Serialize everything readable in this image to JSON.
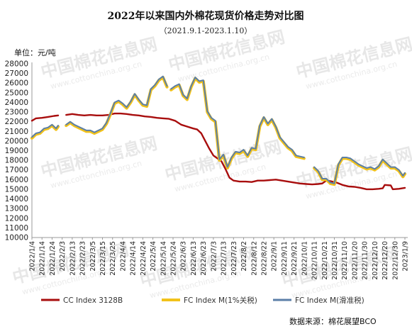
{
  "chart_data": {
    "type": "line",
    "title": "2022年以来国内外棉花现货价格走势对比图",
    "subtitle": "（2021.9.1-2023.1.10）",
    "unit_label": "单位：元/吨",
    "source": "数据来源：棉花展望BCO",
    "watermark": {
      "brand": "中国棉花信息网",
      "site": "www.cottonchina.org.cn"
    },
    "ylim": [
      10000,
      28000
    ],
    "ytick_step": 1000,
    "grid": false,
    "legend_position": "bottom",
    "x_labels": [
      "2022/1/4",
      "2022/1/14",
      "2022/1/24",
      "2022/2/3",
      "2022/2/13",
      "2022/2/23",
      "2022/3/5",
      "2022/3/15",
      "2022/3/25",
      "2022/4/4",
      "2022/4/14",
      "2022/4/24",
      "2022/5/4",
      "2022/5/14",
      "2022/5/24",
      "2022/6/3",
      "2022/6/13",
      "2022/6/23",
      "2022/7/3",
      "2022/7/13",
      "2022/7/23",
      "2022/8/2",
      "2022/8/12",
      "2022/8/22",
      "2022/9/1",
      "2022/9/11",
      "2022/9/21",
      "2022/10/1",
      "2022/10/11",
      "2022/10/21",
      "2022/10/31",
      "2022/11/10",
      "2022/11/20",
      "2022/11/30",
      "2022/12/10",
      "2022/12/20",
      "2022/12/30",
      "2023/1/9"
    ],
    "series": [
      {
        "name": "CC Index 3128B",
        "color": "#a80d0d",
        "points": [
          [
            "2022/1/4",
            22100
          ],
          [
            "2022/1/8",
            22350
          ],
          [
            "2022/1/14",
            22400
          ],
          [
            "2022/1/20",
            22500
          ],
          [
            "2022/1/26",
            22600
          ],
          [
            "2022/1/30",
            22650
          ],
          null,
          [
            "2022/2/7",
            22700
          ],
          [
            "2022/2/13",
            22800
          ],
          [
            "2022/2/19",
            22700
          ],
          [
            "2022/2/25",
            22650
          ],
          [
            "2022/3/3",
            22700
          ],
          [
            "2022/3/9",
            22650
          ],
          [
            "2022/3/15",
            22650
          ],
          [
            "2022/3/21",
            22700
          ],
          [
            "2022/3/27",
            22850
          ],
          [
            "2022/4/2",
            22850
          ],
          [
            "2022/4/8",
            22800
          ],
          [
            "2022/4/14",
            22700
          ],
          [
            "2022/4/20",
            22650
          ],
          [
            "2022/4/26",
            22550
          ],
          [
            "2022/5/2",
            22500
          ],
          [
            "2022/5/8",
            22400
          ],
          [
            "2022/5/14",
            22350
          ],
          [
            "2022/5/20",
            22300
          ],
          [
            "2022/5/26",
            22100
          ],
          [
            "2022/6/1",
            21700
          ],
          [
            "2022/6/7",
            21500
          ],
          [
            "2022/6/13",
            21300
          ],
          [
            "2022/6/17",
            21200
          ],
          [
            "2022/6/21",
            20800
          ],
          [
            "2022/6/25",
            20000
          ],
          [
            "2022/6/29",
            19200
          ],
          [
            "2022/7/3",
            18500
          ],
          [
            "2022/7/7",
            18200
          ],
          [
            "2022/7/11",
            17900
          ],
          [
            "2022/7/15",
            17100
          ],
          [
            "2022/7/19",
            16200
          ],
          [
            "2022/7/23",
            15900
          ],
          [
            "2022/7/29",
            15800
          ],
          [
            "2022/8/4",
            15800
          ],
          [
            "2022/8/10",
            15750
          ],
          [
            "2022/8/16",
            15900
          ],
          [
            "2022/8/22",
            15900
          ],
          [
            "2022/8/28",
            15950
          ],
          [
            "2022/9/3",
            16000
          ],
          [
            "2022/9/9",
            15900
          ],
          [
            "2022/9/15",
            15800
          ],
          [
            "2022/9/21",
            15700
          ],
          [
            "2022/9/27",
            15600
          ],
          [
            "2022/10/3",
            15550
          ],
          [
            "2022/10/9",
            15500
          ],
          [
            "2022/10/15",
            15550
          ],
          [
            "2022/10/19",
            15600
          ],
          [
            "2022/10/23",
            15900
          ],
          [
            "2022/10/27",
            15850
          ],
          [
            "2022/11/2",
            15700
          ],
          [
            "2022/11/8",
            15450
          ],
          [
            "2022/11/14",
            15300
          ],
          [
            "2022/11/20",
            15250
          ],
          [
            "2022/11/26",
            15150
          ],
          [
            "2022/12/2",
            15000
          ],
          [
            "2022/12/8",
            15000
          ],
          [
            "2022/12/14",
            15050
          ],
          [
            "2022/12/18",
            15100
          ],
          [
            "2022/12/20",
            15450
          ],
          [
            "2022/12/26",
            15400
          ],
          [
            "2022/12/28",
            15000
          ],
          [
            "2023/1/3",
            15050
          ],
          [
            "2023/1/9",
            15150
          ]
        ]
      },
      {
        "name": "FC Index M(1%关税)",
        "color": "#f2c21a",
        "points": [
          [
            "2022/1/4",
            20300
          ],
          [
            "2022/1/8",
            20700
          ],
          [
            "2022/1/12",
            20800
          ],
          [
            "2022/1/16",
            21200
          ],
          [
            "2022/1/20",
            21300
          ],
          [
            "2022/1/24",
            21600
          ],
          [
            "2022/1/28",
            21200
          ],
          [
            "2022/1/30",
            21500
          ],
          null,
          [
            "2022/2/7",
            21600
          ],
          [
            "2022/2/11",
            21900
          ],
          [
            "2022/2/15",
            21600
          ],
          [
            "2022/2/19",
            21400
          ],
          [
            "2022/2/23",
            21200
          ],
          [
            "2022/2/27",
            21000
          ],
          [
            "2022/3/3",
            21000
          ],
          [
            "2022/3/7",
            20800
          ],
          [
            "2022/3/11",
            21000
          ],
          [
            "2022/3/15",
            21200
          ],
          [
            "2022/3/19",
            21800
          ],
          [
            "2022/3/23",
            22800
          ],
          [
            "2022/3/27",
            23900
          ],
          [
            "2022/3/31",
            24100
          ],
          [
            "2022/4/4",
            23800
          ],
          [
            "2022/4/8",
            23400
          ],
          [
            "2022/4/12",
            24000
          ],
          [
            "2022/4/16",
            24800
          ],
          [
            "2022/4/20",
            24200
          ],
          [
            "2022/4/24",
            23700
          ],
          [
            "2022/4/28",
            23600
          ],
          [
            "2022/5/2",
            25300
          ],
          [
            "2022/5/6",
            25700
          ],
          [
            "2022/5/10",
            26300
          ],
          [
            "2022/5/14",
            26600
          ],
          [
            "2022/5/18",
            25600
          ],
          null,
          [
            "2022/5/22",
            25300
          ],
          [
            "2022/5/26",
            25600
          ],
          [
            "2022/5/30",
            25800
          ],
          [
            "2022/6/3",
            24700
          ],
          [
            "2022/6/7",
            24300
          ],
          [
            "2022/6/11",
            25600
          ],
          [
            "2022/6/15",
            26500
          ],
          [
            "2022/6/19",
            26100
          ],
          [
            "2022/6/23",
            26200
          ],
          [
            "2022/6/27",
            23000
          ],
          [
            "2022/7/1",
            22300
          ],
          [
            "2022/7/5",
            22000
          ],
          [
            "2022/7/9",
            18000
          ],
          [
            "2022/7/13",
            18500
          ],
          [
            "2022/7/17",
            17200
          ],
          [
            "2022/7/21",
            18200
          ],
          [
            "2022/7/25",
            18800
          ],
          [
            "2022/7/29",
            18700
          ],
          [
            "2022/8/2",
            19000
          ],
          [
            "2022/8/6",
            18400
          ],
          [
            "2022/8/10",
            19200
          ],
          [
            "2022/8/14",
            19100
          ],
          [
            "2022/8/18",
            21500
          ],
          [
            "2022/8/22",
            22400
          ],
          [
            "2022/8/26",
            21700
          ],
          [
            "2022/8/30",
            22200
          ],
          [
            "2022/9/3",
            21400
          ],
          [
            "2022/9/7",
            20300
          ],
          [
            "2022/9/11",
            19800
          ],
          [
            "2022/9/15",
            19300
          ],
          [
            "2022/9/19",
            19000
          ],
          [
            "2022/9/23",
            18400
          ],
          [
            "2022/9/27",
            18300
          ],
          [
            "2022/10/1",
            18200
          ],
          null,
          [
            "2022/10/11",
            17200
          ],
          [
            "2022/10/15",
            16800
          ],
          [
            "2022/10/19",
            16000
          ],
          [
            "2022/10/23",
            16000
          ],
          [
            "2022/10/27",
            15600
          ],
          [
            "2022/10/31",
            15500
          ],
          [
            "2022/11/4",
            17500
          ],
          [
            "2022/11/8",
            18200
          ],
          [
            "2022/11/12",
            18200
          ],
          [
            "2022/11/16",
            18100
          ],
          [
            "2022/11/20",
            17800
          ],
          [
            "2022/11/24",
            17500
          ],
          [
            "2022/11/28",
            17300
          ],
          [
            "2022/12/2",
            17100
          ],
          [
            "2022/12/6",
            17200
          ],
          [
            "2022/12/10",
            17000
          ],
          [
            "2022/12/14",
            17300
          ],
          [
            "2022/12/18",
            18000
          ],
          [
            "2022/12/22",
            17600
          ],
          [
            "2022/12/26",
            17200
          ],
          [
            "2022/12/30",
            17200
          ],
          [
            "2023/1/3",
            16900
          ],
          [
            "2023/1/7",
            16300
          ],
          [
            "2023/1/9",
            16600
          ]
        ]
      },
      {
        "name": "FC Index M(滑准税)",
        "color": "#5b7fa8",
        "points": [
          [
            "2022/1/4",
            20400
          ],
          [
            "2022/1/8",
            20800
          ],
          [
            "2022/1/12",
            20900
          ],
          [
            "2022/1/16",
            21300
          ],
          [
            "2022/1/20",
            21400
          ],
          [
            "2022/1/24",
            21700
          ],
          [
            "2022/1/28",
            21300
          ],
          [
            "2022/1/30",
            21600
          ],
          null,
          [
            "2022/2/7",
            21700
          ],
          [
            "2022/2/11",
            22000
          ],
          [
            "2022/2/15",
            21700
          ],
          [
            "2022/2/19",
            21500
          ],
          [
            "2022/2/23",
            21300
          ],
          [
            "2022/2/27",
            21100
          ],
          [
            "2022/3/3",
            21100
          ],
          [
            "2022/3/7",
            20900
          ],
          [
            "2022/3/11",
            21100
          ],
          [
            "2022/3/15",
            21300
          ],
          [
            "2022/3/19",
            21900
          ],
          [
            "2022/3/23",
            22900
          ],
          [
            "2022/3/27",
            24000
          ],
          [
            "2022/3/31",
            24200
          ],
          [
            "2022/4/4",
            23900
          ],
          [
            "2022/4/8",
            23500
          ],
          [
            "2022/4/12",
            24100
          ],
          [
            "2022/4/16",
            24900
          ],
          [
            "2022/4/20",
            24300
          ],
          [
            "2022/4/24",
            23800
          ],
          [
            "2022/4/28",
            23700
          ],
          [
            "2022/5/2",
            25400
          ],
          [
            "2022/5/6",
            25800
          ],
          [
            "2022/5/10",
            26400
          ],
          [
            "2022/5/14",
            26700
          ],
          [
            "2022/5/18",
            25700
          ],
          null,
          [
            "2022/5/22",
            25400
          ],
          [
            "2022/5/26",
            25700
          ],
          [
            "2022/5/30",
            25900
          ],
          [
            "2022/6/3",
            24800
          ],
          [
            "2022/6/7",
            24400
          ],
          [
            "2022/6/11",
            25700
          ],
          [
            "2022/6/15",
            26600
          ],
          [
            "2022/6/19",
            26200
          ],
          [
            "2022/6/23",
            26300
          ],
          [
            "2022/6/27",
            23100
          ],
          [
            "2022/7/1",
            22400
          ],
          [
            "2022/7/5",
            22100
          ],
          [
            "2022/7/9",
            18100
          ],
          [
            "2022/7/13",
            18600
          ],
          [
            "2022/7/17",
            17300
          ],
          [
            "2022/7/21",
            18300
          ],
          [
            "2022/7/25",
            18900
          ],
          [
            "2022/7/29",
            18800
          ],
          [
            "2022/8/2",
            19100
          ],
          [
            "2022/8/6",
            18500
          ],
          [
            "2022/8/10",
            19300
          ],
          [
            "2022/8/14",
            19200
          ],
          [
            "2022/8/18",
            21600
          ],
          [
            "2022/8/22",
            22500
          ],
          [
            "2022/8/26",
            21800
          ],
          [
            "2022/8/30",
            22300
          ],
          [
            "2022/9/3",
            21500
          ],
          [
            "2022/9/7",
            20400
          ],
          [
            "2022/9/11",
            19900
          ],
          [
            "2022/9/15",
            19400
          ],
          [
            "2022/9/19",
            19100
          ],
          [
            "2022/9/23",
            18500
          ],
          [
            "2022/9/27",
            18400
          ],
          [
            "2022/10/1",
            18300
          ],
          null,
          [
            "2022/10/11",
            17300
          ],
          [
            "2022/10/15",
            16900
          ],
          [
            "2022/10/19",
            16100
          ],
          [
            "2022/10/23",
            16100
          ],
          [
            "2022/10/27",
            15700
          ],
          [
            "2022/10/31",
            15600
          ],
          [
            "2022/11/4",
            17600
          ],
          [
            "2022/11/8",
            18300
          ],
          [
            "2022/11/12",
            18300
          ],
          [
            "2022/11/16",
            18200
          ],
          [
            "2022/11/20",
            17900
          ],
          [
            "2022/11/24",
            17600
          ],
          [
            "2022/11/28",
            17400
          ],
          [
            "2022/12/2",
            17200
          ],
          [
            "2022/12/6",
            17300
          ],
          [
            "2022/12/10",
            17100
          ],
          [
            "2022/12/14",
            17400
          ],
          [
            "2022/12/18",
            18100
          ],
          [
            "2022/12/22",
            17700
          ],
          [
            "2022/12/26",
            17300
          ],
          [
            "2022/12/30",
            17300
          ],
          [
            "2023/1/3",
            17000
          ],
          [
            "2023/1/7",
            16400
          ],
          [
            "2023/1/9",
            16700
          ]
        ]
      }
    ]
  }
}
